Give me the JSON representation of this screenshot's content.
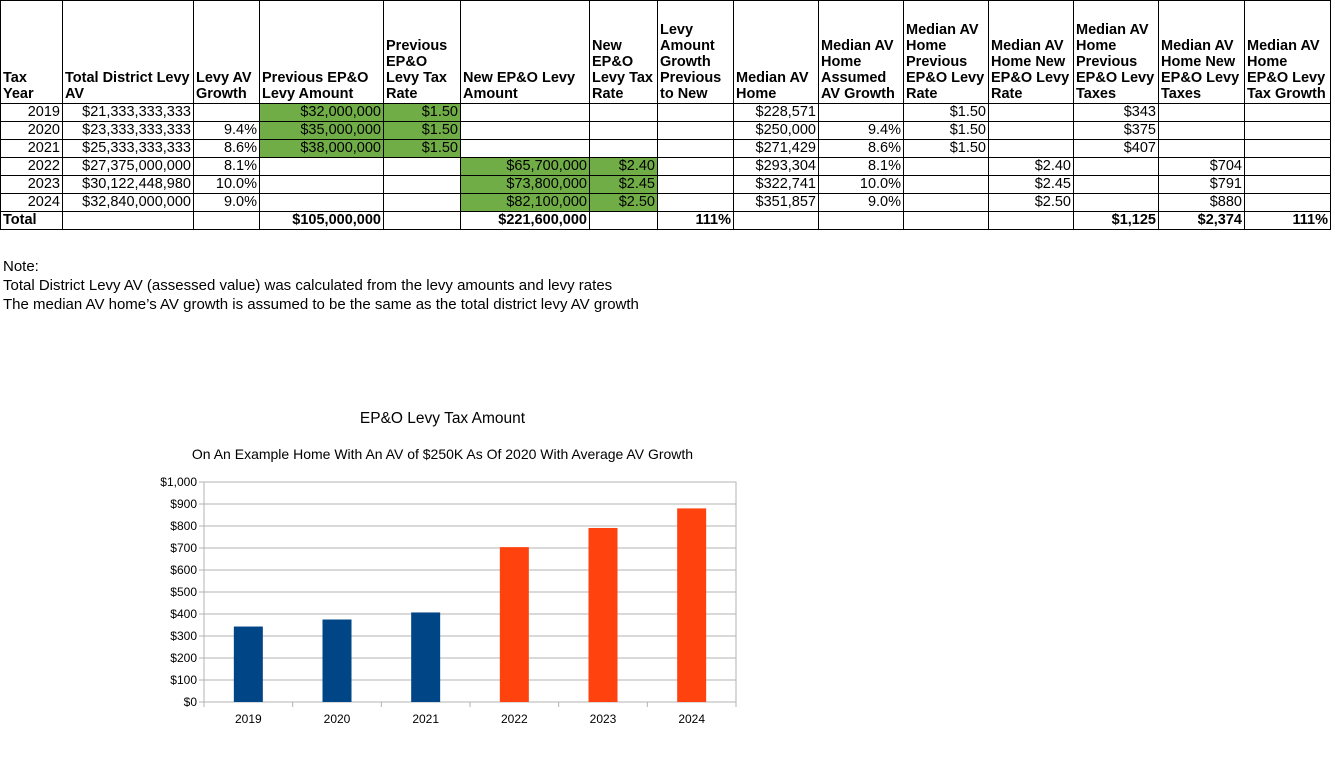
{
  "table": {
    "headers": [
      "Tax Year",
      "Total District Levy AV",
      "Levy AV Growth",
      "Previous EP&O Levy Amount",
      "Previous EP&O Levy Tax Rate",
      "New EP&O Levy Amount",
      "New EP&O Levy Tax Rate",
      "Levy Amount Growth Previous to New",
      "Median AV Home",
      "Median AV Home Assumed AV Growth",
      "Median AV Home Previous EP&O Levy Rate",
      "Median AV Home New EP&O Levy Rate",
      "Median AV Home Previous EP&O Levy Taxes",
      "Median AV Home New EP&O Levy Taxes",
      "Median AV Home EP&O Levy Tax Growth"
    ],
    "rows": [
      [
        "2019",
        "$21,333,333,333",
        "",
        "$32,000,000",
        "$1.50",
        "",
        "",
        "",
        "$228,571",
        "",
        "$1.50",
        "",
        "$343",
        "",
        ""
      ],
      [
        "2020",
        "$23,333,333,333",
        "9.4%",
        "$35,000,000",
        "$1.50",
        "",
        "",
        "",
        "$250,000",
        "9.4%",
        "$1.50",
        "",
        "$375",
        "",
        ""
      ],
      [
        "2021",
        "$25,333,333,333",
        "8.6%",
        "$38,000,000",
        "$1.50",
        "",
        "",
        "",
        "$271,429",
        "8.6%",
        "$1.50",
        "",
        "$407",
        "",
        ""
      ],
      [
        "2022",
        "$27,375,000,000",
        "8.1%",
        "",
        "",
        "$65,700,000",
        "$2.40",
        "",
        "$293,304",
        "8.1%",
        "",
        "$2.40",
        "",
        "$704",
        ""
      ],
      [
        "2023",
        "$30,122,448,980",
        "10.0%",
        "",
        "",
        "$73,800,000",
        "$2.45",
        "",
        "$322,741",
        "10.0%",
        "",
        "$2.45",
        "",
        "$791",
        ""
      ],
      [
        "2024",
        "$32,840,000,000",
        "9.0%",
        "",
        "",
        "$82,100,000",
        "$2.50",
        "",
        "$351,857",
        "9.0%",
        "",
        "$2.50",
        "",
        "$880",
        ""
      ]
    ],
    "total_row": [
      "Total",
      "",
      "",
      "$105,000,000",
      "",
      "$221,600,000",
      "",
      "111%",
      "",
      "",
      "",
      "",
      "$1,125",
      "$2,374",
      "111%"
    ]
  },
  "notes": {
    "heading": "Note:",
    "line1": "Total District Levy AV (assessed value) was calculated from the levy amounts and levy rates",
    "line2": "The median AV home’s AV growth is assumed to be the same as the total district levy AV growth"
  },
  "chart_data": {
    "type": "bar",
    "title": "EP&O Levy Tax Amount",
    "subtitle": "On An Example Home With An AV of $250K As Of 2020 With Average AV Growth",
    "categories": [
      "2019",
      "2020",
      "2021",
      "2022",
      "2023",
      "2024"
    ],
    "values": [
      343,
      375,
      407,
      704,
      791,
      880
    ],
    "bar_colors": [
      "#004586",
      "#004586",
      "#004586",
      "#ff420e",
      "#ff420e",
      "#ff420e"
    ],
    "ylim": [
      0,
      1000
    ],
    "yticks": [
      0,
      100,
      200,
      300,
      400,
      500,
      600,
      700,
      800,
      900,
      1000
    ],
    "ytick_labels": [
      "$0",
      "$100",
      "$200",
      "$300",
      "$400",
      "$500",
      "$600",
      "$700",
      "$800",
      "$900",
      "$1,000"
    ],
    "grid": true,
    "legend": "none"
  },
  "colors": {
    "highlight_green": "#70ad47",
    "previous_levy_bar": "#004586",
    "new_levy_bar": "#ff420e",
    "gridline": "#b3b3b3"
  }
}
